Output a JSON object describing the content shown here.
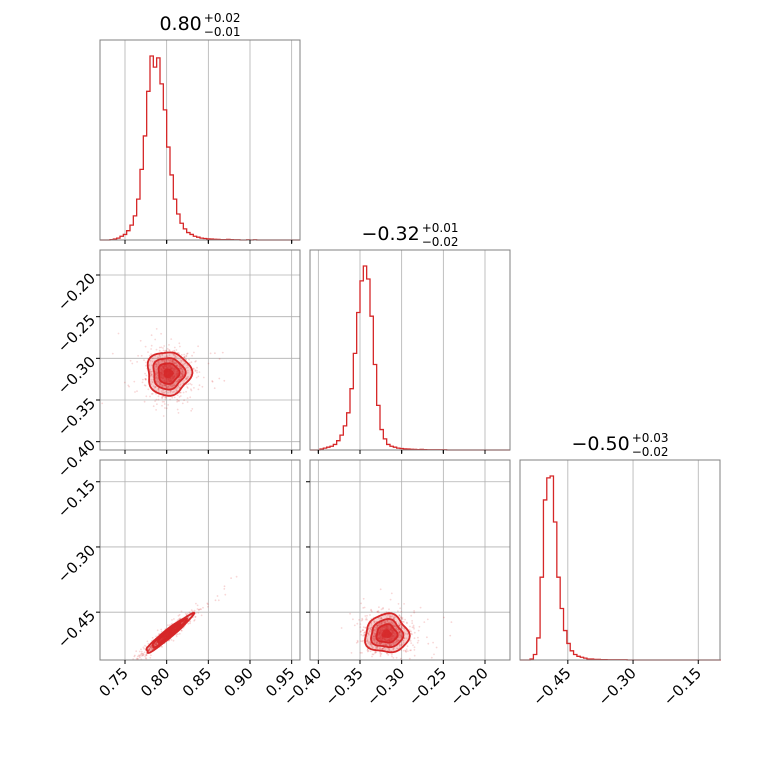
{
  "chart_data": {
    "type": "corner",
    "color": "#d62728",
    "parameters": [
      {
        "title": "0.80",
        "err_plus": "+0.02",
        "err_minus": "−0.01",
        "range": [
          0.72,
          0.96
        ],
        "hist_ticks": [
          0.75,
          0.8,
          0.85,
          0.9,
          0.95
        ]
      },
      {
        "title": "−0.32",
        "err_plus": "+0.01",
        "err_minus": "−0.02",
        "range": [
          -0.41,
          -0.17
        ],
        "hist_ticks": [
          -0.4,
          -0.35,
          -0.3,
          -0.25,
          -0.2
        ]
      },
      {
        "title": "−0.50",
        "err_plus": "+0.03",
        "err_minus": "−0.02",
        "range": [
          -0.56,
          -0.1
        ],
        "hist_ticks": [
          -0.45,
          -0.3,
          -0.15
        ]
      }
    ],
    "tick_labels": {
      "x0": [
        "0.75",
        "0.80",
        "0.85",
        "0.90",
        "0.95"
      ],
      "x1": [
        "−0.40",
        "−0.35",
        "−0.30",
        "−0.25",
        "−0.20"
      ],
      "x2": [
        "−0.45",
        "−0.30",
        "−0.15"
      ],
      "y1": [
        "−0.20",
        "−0.25",
        "−0.30",
        "−0.35",
        "−0.40"
      ],
      "y2": [
        "−0.15",
        "−0.30",
        "−0.45"
      ]
    },
    "axis_ticks": {
      "y1": [
        -0.2,
        -0.25,
        -0.3,
        -0.35,
        -0.4
      ],
      "y2": [
        -0.15,
        -0.3,
        -0.45
      ]
    },
    "histograms": [
      {
        "bin_start": 0.72,
        "bin_width": 0.004,
        "counts": [
          0,
          0,
          0,
          0.2,
          0.5,
          1,
          2,
          3,
          5,
          8,
          13,
          22,
          38,
          56,
          80,
          99,
          93,
          98,
          84,
          70,
          50,
          35,
          22,
          14,
          9,
          6,
          4,
          3,
          2,
          1.5,
          1,
          0.8,
          0.6,
          0.5,
          0.4,
          0.3,
          0.2,
          0.2,
          0.3,
          0.2,
          0.1,
          0.1,
          0,
          0,
          0.1,
          0,
          0.1,
          0,
          0,
          0,
          0,
          0,
          0,
          0,
          0,
          0,
          0,
          0,
          0,
          0
        ]
      },
      {
        "bin_start": -0.41,
        "bin_width": 0.004,
        "counts": [
          0,
          0,
          0,
          0.5,
          1,
          1.5,
          2,
          3,
          5,
          8,
          13,
          20,
          33,
          52,
          74,
          91,
          99,
          92,
          72,
          46,
          24,
          11,
          6,
          3,
          2,
          1.5,
          1,
          0.8,
          0.6,
          0.5,
          0.4,
          0.3,
          0.2,
          0.3,
          0.2,
          0.1,
          0.1,
          0.1,
          0.1,
          0.1,
          0.1,
          0,
          0,
          0,
          0,
          0,
          0,
          0,
          0,
          0,
          0,
          0,
          0,
          0,
          0,
          0,
          0,
          0,
          0,
          0
        ]
      },
      {
        "bin_start": -0.56,
        "bin_width": 0.0077,
        "counts": [
          0,
          0,
          0,
          0.5,
          3,
          12,
          45,
          87,
          99,
          100,
          75,
          45,
          28,
          16,
          9,
          5,
          3,
          2,
          1.5,
          1,
          0.5,
          0.5,
          0.3,
          0.3,
          0.2,
          0.2,
          0.1,
          0.1,
          0.1,
          0.1,
          0.1,
          0.1,
          0,
          0,
          0,
          0,
          0,
          0,
          0,
          0,
          0,
          0,
          0,
          0,
          0,
          0,
          0,
          0,
          0,
          0,
          0,
          0,
          0,
          0,
          0,
          0,
          0,
          0,
          0,
          0
        ]
      }
    ],
    "correlations": [
      {
        "x_param": 0,
        "y_param": 1,
        "mean": [
          0.802,
          -0.318
        ],
        "sd": [
          0.013,
          0.013
        ],
        "rho": 0.0
      },
      {
        "x_param": 0,
        "y_param": 2,
        "mean": [
          0.802,
          -0.5
        ],
        "sd": [
          0.014,
          0.022
        ],
        "rho": 0.96
      },
      {
        "x_param": 1,
        "y_param": 2,
        "mean": [
          -0.318,
          -0.5
        ],
        "sd": [
          0.013,
          0.022
        ],
        "rho": 0.0
      }
    ]
  }
}
